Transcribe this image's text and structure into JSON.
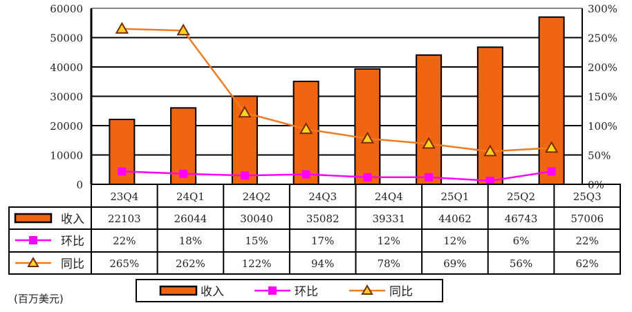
{
  "chart_data": {
    "type": "bar",
    "categories": [
      "23Q4",
      "24Q1",
      "24Q2",
      "24Q3",
      "24Q4",
      "25Q1",
      "25Q2",
      "25Q3"
    ],
    "unit_note": "(百万美元)",
    "y_left": {
      "min": 0,
      "max": 60000,
      "ticks": [
        0,
        10000,
        20000,
        30000,
        40000,
        50000,
        60000
      ],
      "tick_labels": [
        "0",
        "10000",
        "20000",
        "30000",
        "40000",
        "50000",
        "60000"
      ]
    },
    "y_right": {
      "min": 0,
      "max": 300,
      "ticks": [
        0,
        50,
        100,
        150,
        200,
        250,
        300
      ],
      "tick_labels": [
        "0%",
        "50%",
        "100%",
        "150%",
        "200%",
        "250%",
        "300%"
      ]
    },
    "grid": true,
    "legend_placement": "bottom",
    "series": [
      {
        "name": "收入",
        "kind": "bar",
        "axis": "left",
        "color": "#f0650f",
        "values": [
          22103,
          26044,
          30040,
          35082,
          39331,
          44062,
          46743,
          57006
        ],
        "labels": [
          "22103",
          "26044",
          "30040",
          "35082",
          "39331",
          "44062",
          "46743",
          "57006"
        ]
      },
      {
        "name": "环比",
        "kind": "line",
        "marker": "square",
        "axis": "right",
        "color": "#ff00ff",
        "values": [
          22,
          18,
          15,
          17,
          12,
          12,
          6,
          22
        ],
        "labels": [
          "22%",
          "18%",
          "15%",
          "17%",
          "12%",
          "12%",
          "6%",
          "22%"
        ]
      },
      {
        "name": "同比",
        "kind": "line",
        "marker": "triangle",
        "axis": "right",
        "color": "#f07a22",
        "values": [
          265,
          262,
          122,
          94,
          78,
          69,
          56,
          62
        ],
        "labels": [
          "265%",
          "262%",
          "122%",
          "94%",
          "78%",
          "69%",
          "56%",
          "62%"
        ]
      }
    ]
  }
}
